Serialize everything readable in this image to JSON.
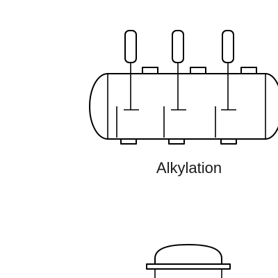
{
  "diagram": {
    "shapes": [
      {
        "name": "alkylation-reactor",
        "label": "Alkylation"
      },
      {
        "name": "vessel-partial",
        "label": ""
      }
    ]
  },
  "colors": {
    "stroke": "#000000",
    "fill": "#ffffff",
    "label": "#1a1a1a"
  }
}
